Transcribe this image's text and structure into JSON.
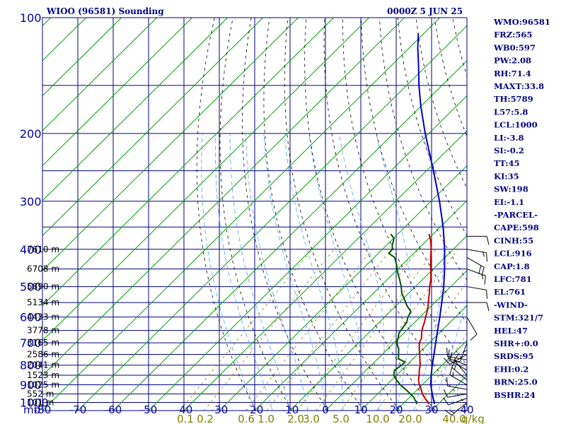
{
  "header": {
    "station": "WIOO (96581) Sounding",
    "valid": "0000Z  5 JUN 25"
  },
  "colors": {
    "frame": "#000080",
    "isotherm": "#00a000",
    "dry_adiabat": "#000000",
    "moist_adiabat": "#4aa0ff",
    "mixing_ratio": "#808000",
    "temperature": "#c00000",
    "dewpoint": "#005500",
    "parcel": "#0000c0",
    "wind": "#000000"
  },
  "side_params": [
    "WMO:96581",
    "FRZ:565",
    "WB0:597",
    "PW:2.08",
    "RH:71.4",
    "MAXT:33.8",
    "TH:5789",
    "L57:5.8",
    "LCL:1000",
    "LI:-3.8",
    "SI:-0.2",
    "TT:45",
    "KI:35",
    "SW:198",
    "EI:-1.1",
    "-PARCEL-",
    "CAPE:598",
    "CINH:55",
    "LCL:916",
    "CAP:1.8",
    "LFC:781",
    "EL:761",
    "-WIND-",
    "STM:321/7",
    "HEL:47",
    "SHR+:0.0",
    "SRDS:95",
    "EHI:0.2",
    "BRN:25.0",
    "BSHR:24"
  ],
  "chart_data": {
    "type": "line",
    "title": "WIOO (96581) Sounding",
    "subtitle": "0000Z  5 JUN 25",
    "x_axis": {
      "ticks": [
        -80,
        -70,
        -60,
        -50,
        -40,
        -30,
        -20,
        -10,
        0,
        10,
        20,
        30,
        40
      ],
      "range": [
        -80,
        40
      ]
    },
    "y_axis": {
      "unit": "mb",
      "ticks": [
        100,
        200,
        300,
        400,
        500,
        600,
        700,
        800,
        900,
        1000
      ],
      "range": [
        1050,
        100
      ],
      "scale": "log"
    },
    "mixing_ratio_labels": [
      "0.1",
      "0.2",
      "0.6",
      "1.0",
      "2.0",
      "3.0",
      "5.0",
      "10.0",
      "20.0",
      "40.0"
    ],
    "mixing_ratio_unit": "g/kg",
    "mixing_ratio_values": [
      0.1,
      0.2,
      0.6,
      1.0,
      2.0,
      3.0,
      5.0,
      10.0,
      20.0,
      40.0
    ],
    "height_labels": [
      {
        "p": 400,
        "text": "7610 m"
      },
      {
        "p": 450,
        "text": "6708 m"
      },
      {
        "p": 500,
        "text": "5890 m"
      },
      {
        "p": 550,
        "text": "5134 m"
      },
      {
        "p": 600,
        "text": "4433 m"
      },
      {
        "p": 650,
        "text": "3778 m"
      },
      {
        "p": 700,
        "text": "3165 m"
      },
      {
        "p": 750,
        "text": "2586 m"
      },
      {
        "p": 800,
        "text": "2041 m"
      },
      {
        "p": 850,
        "text": "1523 m"
      },
      {
        "p": 900,
        "text": "1025 m"
      },
      {
        "p": 950,
        "text": "552 m"
      },
      {
        "p": 1000,
        "text": "101 m"
      }
    ],
    "series": [
      {
        "key": "temperature",
        "points": [
          [
            1010,
            27.2
          ],
          [
            1000,
            26.8
          ],
          [
            990,
            25.8
          ],
          [
            970,
            24.2
          ],
          [
            950,
            22.6
          ],
          [
            925,
            21.0
          ],
          [
            900,
            19.2
          ],
          [
            875,
            17.6
          ],
          [
            850,
            16.4
          ],
          [
            825,
            15.0
          ],
          [
            800,
            13.8
          ],
          [
            775,
            12.2
          ],
          [
            750,
            10.6
          ],
          [
            725,
            8.8
          ],
          [
            700,
            7.2
          ],
          [
            680,
            6.4
          ],
          [
            660,
            5.0
          ],
          [
            640,
            3.8
          ],
          [
            620,
            2.8
          ],
          [
            600,
            1.6
          ],
          [
            580,
            0.4
          ],
          [
            560,
            -1.0
          ],
          [
            540,
            -2.6
          ],
          [
            520,
            -4.2
          ],
          [
            500,
            -6.0
          ],
          [
            480,
            -7.6
          ],
          [
            460,
            -9.6
          ],
          [
            440,
            -11.8
          ],
          [
            420,
            -14.0
          ],
          [
            400,
            -16.2
          ],
          [
            380,
            -18.8
          ],
          [
            365,
            -21.2
          ]
        ]
      },
      {
        "key": "dewpoint",
        "points": [
          [
            1010,
            23.8
          ],
          [
            1000,
            23.6
          ],
          [
            990,
            22.6
          ],
          [
            970,
            21.2
          ],
          [
            950,
            19.2
          ],
          [
            925,
            16.6
          ],
          [
            900,
            13.8
          ],
          [
            875,
            11.4
          ],
          [
            850,
            9.2
          ],
          [
            825,
            8.0
          ],
          [
            800,
            8.6
          ],
          [
            785,
            8.6
          ],
          [
            770,
            5.8
          ],
          [
            750,
            4.6
          ],
          [
            725,
            3.0
          ],
          [
            700,
            0.8
          ],
          [
            680,
            -0.2
          ],
          [
            660,
            -1.4
          ],
          [
            640,
            -1.8
          ],
          [
            620,
            -2.2
          ],
          [
            600,
            -3.4
          ],
          [
            580,
            -4.2
          ],
          [
            560,
            -7.0
          ],
          [
            540,
            -9.4
          ],
          [
            520,
            -12.0
          ],
          [
            500,
            -14.0
          ],
          [
            480,
            -16.4
          ],
          [
            460,
            -19.0
          ],
          [
            440,
            -21.4
          ],
          [
            420,
            -24.2
          ],
          [
            410,
            -27.0
          ],
          [
            400,
            -27.2
          ],
          [
            390,
            -28.4
          ],
          [
            375,
            -29.8
          ],
          [
            365,
            -32.0
          ]
        ]
      },
      {
        "key": "parcel",
        "points": [
          [
            1010,
            29.0
          ],
          [
            1000,
            28.4
          ],
          [
            950,
            25.4
          ],
          [
            900,
            22.4
          ],
          [
            850,
            19.8
          ],
          [
            800,
            17.2
          ],
          [
            750,
            14.6
          ],
          [
            700,
            11.8
          ],
          [
            650,
            8.8
          ],
          [
            600,
            5.6
          ],
          [
            550,
            2.0
          ],
          [
            500,
            -2.0
          ],
          [
            450,
            -6.8
          ],
          [
            400,
            -12.4
          ],
          [
            350,
            -19.2
          ],
          [
            300,
            -27.6
          ],
          [
            250,
            -38.0
          ],
          [
            200,
            -51.0
          ],
          [
            170,
            -60.0
          ],
          [
            150,
            -66.5
          ],
          [
            130,
            -73.5
          ],
          [
            120,
            -77.5
          ],
          [
            110,
            -81.5
          ]
        ]
      }
    ],
    "wind_barbs": [
      {
        "p": 1000,
        "dir": 230,
        "spd": 15
      },
      {
        "p": 975,
        "dir": 250,
        "spd": 10
      },
      {
        "p": 950,
        "dir": 260,
        "spd": 10
      },
      {
        "p": 925,
        "dir": 280,
        "spd": 10
      },
      {
        "p": 900,
        "dir": 300,
        "spd": 15
      },
      {
        "p": 875,
        "dir": 310,
        "spd": 15
      },
      {
        "p": 850,
        "dir": 320,
        "spd": 10
      },
      {
        "p": 825,
        "dir": 300,
        "spd": 10
      },
      {
        "p": 800,
        "dir": 290,
        "spd": 10
      },
      {
        "p": 775,
        "dir": 280,
        "spd": 10
      },
      {
        "p": 750,
        "dir": 240,
        "spd": 15
      },
      {
        "p": 700,
        "dir": 200,
        "spd": 5
      },
      {
        "p": 650,
        "dir": 180,
        "spd": 5
      },
      {
        "p": 600,
        "dir": 150,
        "spd": 10
      },
      {
        "p": 550,
        "dir": 90,
        "spd": 10
      },
      {
        "p": 500,
        "dir": 100,
        "spd": 10
      },
      {
        "p": 450,
        "dir": 110,
        "spd": 15
      },
      {
        "p": 420,
        "dir": 120,
        "spd": 20
      },
      {
        "p": 400,
        "dir": 100,
        "spd": 15
      },
      {
        "p": 370,
        "dir": 90,
        "spd": 10
      }
    ]
  }
}
